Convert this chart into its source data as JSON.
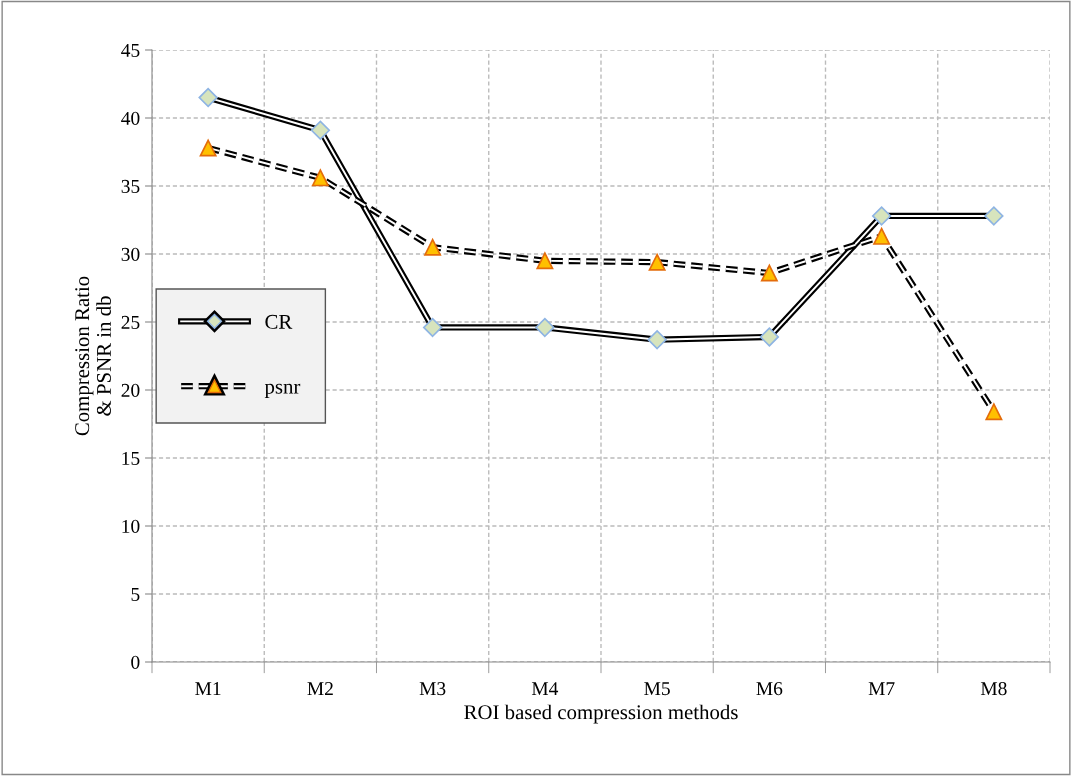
{
  "chart_data": {
    "type": "line",
    "xlabel": "ROI based compression methods",
    "ylabel": "Compression Ratio\n& PSNR in db",
    "categories": [
      "M1",
      "M2",
      "M3",
      "M4",
      "M5",
      "M6",
      "M7",
      "M8"
    ],
    "series": [
      {
        "name": "CR",
        "color": "#d7e4bd",
        "marker": "diamond",
        "line_style": "solid",
        "values": [
          41.5,
          39.1,
          24.6,
          24.6,
          23.7,
          23.9,
          32.8,
          32.8
        ]
      },
      {
        "name": "psnr",
        "color": "#ffc000",
        "marker": "triangle",
        "line_style": "dashed",
        "values": [
          37.8,
          35.6,
          30.5,
          29.5,
          29.4,
          28.6,
          31.3,
          18.4
        ]
      }
    ],
    "ylim": [
      0,
      45
    ],
    "yticks": [
      0,
      5,
      10,
      15,
      20,
      25,
      30,
      35,
      40,
      45
    ],
    "grid": true,
    "legend": "center left"
  }
}
